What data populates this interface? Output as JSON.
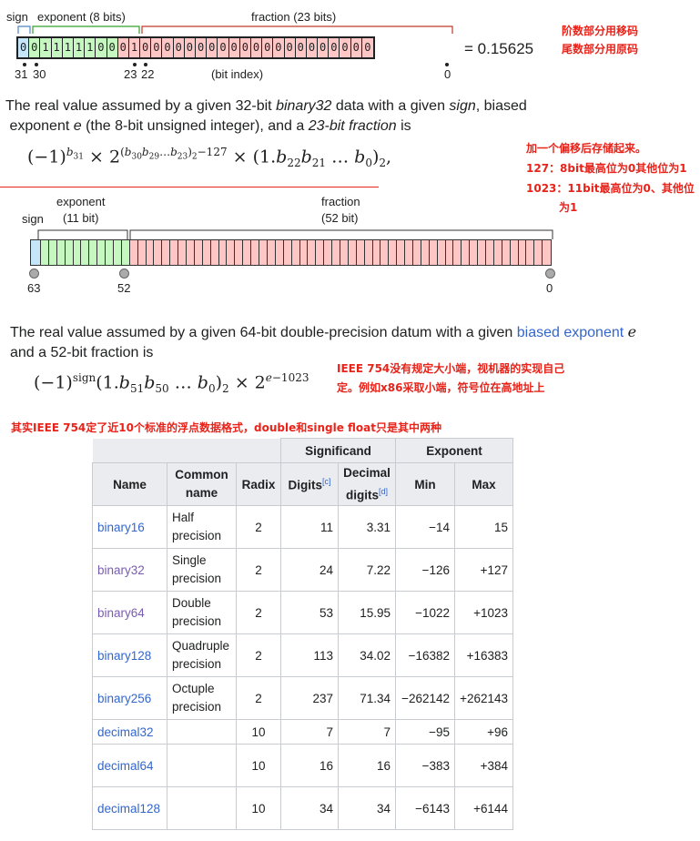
{
  "fig32": {
    "sign_label": "sign",
    "exponent_label": "exponent (8 bits)",
    "fraction_label": "fraction (23 bits)",
    "bits": [
      "0",
      "0",
      "1",
      "1",
      "1",
      "1",
      "1",
      "0",
      "0",
      "0",
      "1",
      "0",
      "0",
      "0",
      "0",
      "0",
      "0",
      "0",
      "0",
      "0",
      "0",
      "0",
      "0",
      "0",
      "0",
      "0",
      "0",
      "0",
      "0",
      "0",
      "0",
      "0"
    ],
    "equals": "= 0.15625",
    "idx_31": "31",
    "idx_30": "30",
    "idx_23": "23",
    "idx_22": "22",
    "idx_0": "0",
    "bit_index_label": "(bit index)",
    "colors": {
      "sign": "#c5e6f9",
      "exponent": "#c6f7c0",
      "fraction": "#ffc6c6"
    }
  },
  "notes": {
    "exp_biased": "阶数部分用移码",
    "frac_original": "尾数部分用原码",
    "bias_1": "加一个偏移后存储起来。",
    "bias_2": "127：8bit最高位为0其他位为1",
    "bias_3": "1023：11bit最高位为0、其他位",
    "bias_4": "为1",
    "endian_1": "IEEE 754没有规定大小端，视机器的实现自己",
    "endian_2": "定。例如x86采取小端，符号位在高地址上",
    "formats_note": "其实IEEE 754定了近10个标准的浮点数据格式，double和single float只是其中两种"
  },
  "para32": {
    "p1": "The real value assumed by a given 32-bit ",
    "p2": "binary32",
    "p3": " data with a given ",
    "p4": "sign",
    "p5": ", biased",
    "p6": "exponent ",
    "p7": "e",
    "p8": " (the 8-bit unsigned integer), and a ",
    "p9": "23-bit fraction",
    "p10": " is"
  },
  "fig64": {
    "sign_label": "sign",
    "exponent_label": "exponent",
    "exponent_bits": "(11 bit)",
    "fraction_label": "fraction",
    "fraction_bits": "(52 bit)",
    "idx_63": "63",
    "idx_52": "52",
    "idx_0": "0"
  },
  "para64": {
    "p1": "The real value assumed by a given 64-bit double-precision datum with a given ",
    "link": "biased exponent",
    "p2": " ",
    "e": "e",
    "p3": "and a 52-bit fraction is"
  },
  "table": {
    "group_significand": "Significand",
    "group_exponent": "Exponent",
    "h_name": "Name",
    "h_common": "Common name",
    "h_radix": "Radix",
    "h_digits": "Digits",
    "h_digits_ref": "[c]",
    "h_decimal": "Decimal digits",
    "h_decimal_ref": "[d]",
    "h_min": "Min",
    "h_max": "Max",
    "rows": [
      {
        "name": "binary16",
        "common": "Half precision",
        "radix": "2",
        "digits": "11",
        "decimal": "3.31",
        "min": "−14",
        "max": "15"
      },
      {
        "name": "binary32",
        "common": "Single precision",
        "radix": "2",
        "digits": "24",
        "decimal": "7.22",
        "min": "−126",
        "max": "+127"
      },
      {
        "name": "binary64",
        "common": "Double precision",
        "radix": "2",
        "digits": "53",
        "decimal": "15.95",
        "min": "−1022",
        "max": "+1023"
      },
      {
        "name": "binary128",
        "common": "Quadruple precision",
        "radix": "2",
        "digits": "113",
        "decimal": "34.02",
        "min": "−16382",
        "max": "+16383"
      },
      {
        "name": "binary256",
        "common": "Octuple precision",
        "radix": "2",
        "digits": "237",
        "decimal": "71.34",
        "min": "−262142",
        "max": "+262143"
      },
      {
        "name": "decimal32",
        "common": "",
        "radix": "10",
        "digits": "7",
        "decimal": "7",
        "min": "−95",
        "max": "+96"
      },
      {
        "name": "decimal64",
        "common": "",
        "radix": "10",
        "digits": "16",
        "decimal": "16",
        "min": "−383",
        "max": "+384"
      },
      {
        "name": "decimal128",
        "common": "",
        "radix": "10",
        "digits": "34",
        "decimal": "34",
        "min": "−6143",
        "max": "+6144"
      }
    ]
  }
}
